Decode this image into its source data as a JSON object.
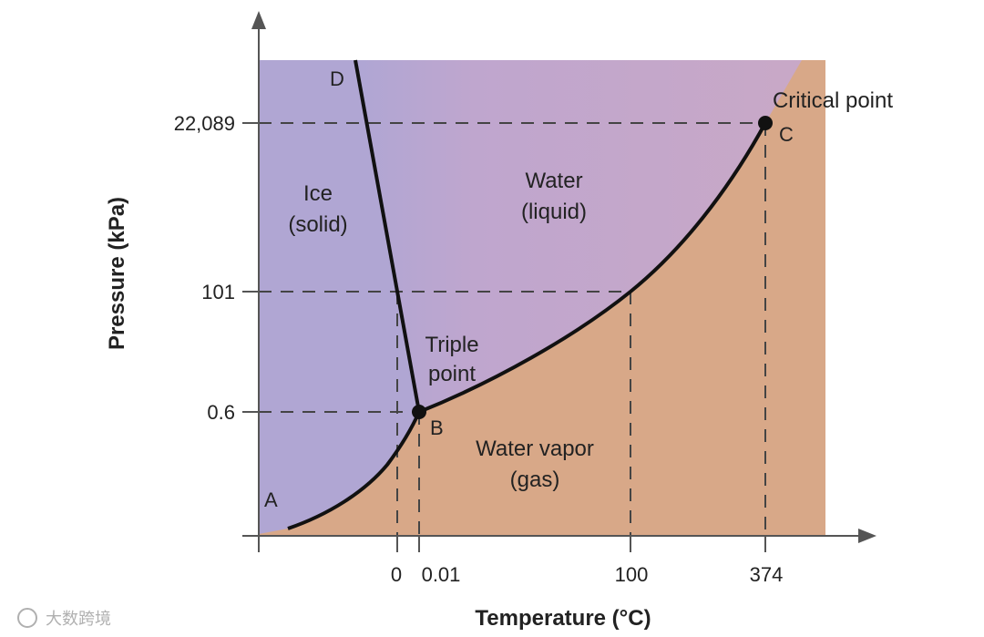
{
  "regions": {
    "ice": {
      "line1": "Ice",
      "line2": "(solid)",
      "color": "#b0a6d3"
    },
    "water": {
      "line1": "Water",
      "line2": "(liquid)",
      "color": "#c8a8c8"
    },
    "vapor": {
      "line1": "Water vapor",
      "line2": "(gas)",
      "color": "#d8a888"
    }
  },
  "points": {
    "a": "A",
    "b": "B",
    "c": "C",
    "d": "D",
    "triple_line1": "Triple",
    "triple_line2": "point",
    "critical": "Critical point"
  },
  "axes": {
    "x_title": "Temperature (°C)",
    "y_title": "Pressure (kPa)",
    "x_ticks": [
      "0",
      "0.01",
      "100",
      "374"
    ],
    "y_ticks": [
      "22,089",
      "101",
      "0.6"
    ]
  },
  "watermark": "大数跨境",
  "colors": {
    "curve": "#111111",
    "axis": "#555555",
    "dash": "#444444"
  }
}
